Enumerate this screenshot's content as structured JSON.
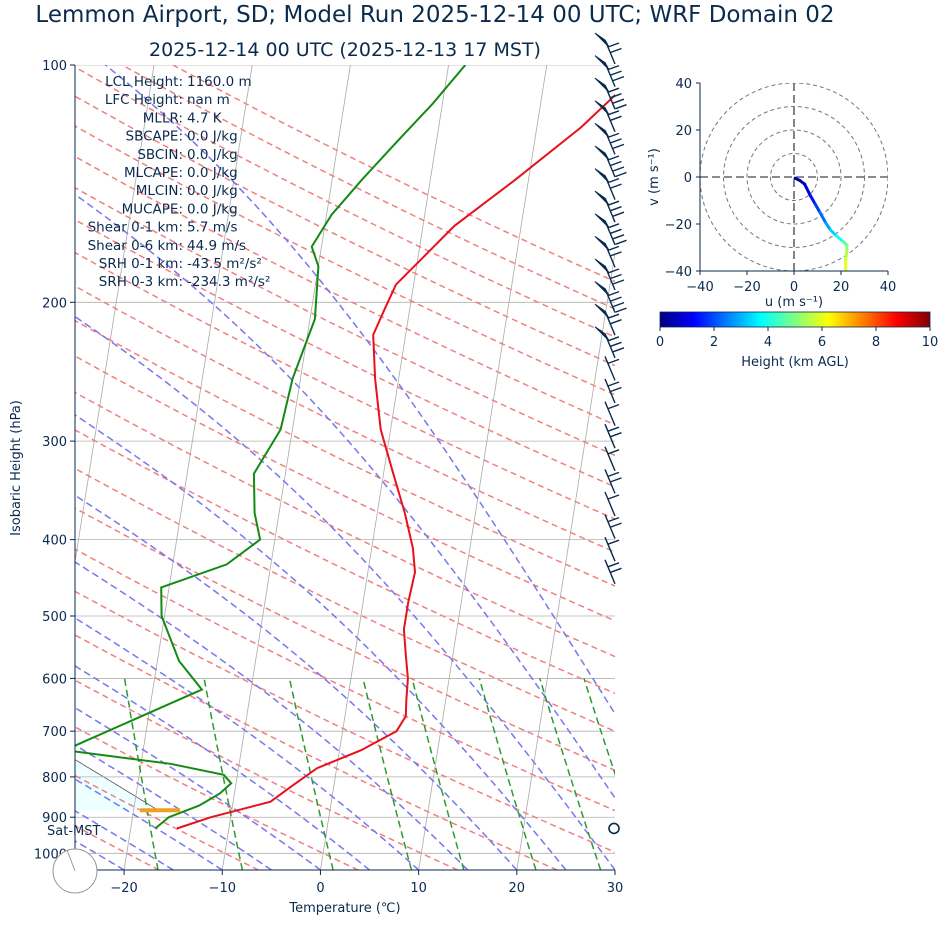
{
  "title": "Lemmon Airport, SD; Model Run 2025-12-14 00 UTC; WRF Domain 02",
  "subtitle": "2025-12-14 00 UTC  (2025-12-13 17 MST)",
  "colors": {
    "text": "#0a2a4e",
    "temperature": "#e8111b",
    "dewpoint": "#138a13",
    "dry_adiabat": "#f08080",
    "moist_adiabat": "#7777ee",
    "mixing_ratio": "#2e9a2e",
    "isotherm": "#aaaaaa",
    "cape_fill": "#eeffff",
    "lcl_marker": "#f0a020",
    "barb": "#0a2a4e"
  },
  "stats": [
    "LCL Height: 1160.0 m",
    "LFC Height: nan m",
    "MLLR: 4.7 K",
    "SBCAPE: 0.0 J/kg",
    "SBCIN: 0.0 J/kg",
    "MLCAPE: 0.0 J/kg",
    "MLCIN: 0.0 J/kg",
    "MUCAPE: 0.0 J/kg",
    "Shear 0-1 km: 5.7 m/s",
    "Shear 0-6 km: 44.9 m/s",
    "SRH 0-1 km: -43.5 m²/s²",
    "SRH 0-3 km: -234.3 m²/s²"
  ],
  "station_label": "Sat-MST",
  "chart_data": [
    {
      "type": "line",
      "name": "skew-t",
      "xlabel": "Temperature (℃)",
      "ylabel": "Isobaric Height (hPa)",
      "xlim": [
        -25,
        30
      ],
      "ylim": [
        1050,
        100
      ],
      "y_scale": "log",
      "x_ticks": [
        "−20",
        "−10",
        "0",
        "10",
        "20",
        "30"
      ],
      "x_tick_values": [
        -20,
        -10,
        0,
        10,
        20,
        30
      ],
      "y_ticks": [
        "100",
        "200",
        "300",
        "400",
        "500",
        "600",
        "700",
        "800",
        "900",
        "1000"
      ],
      "y_tick_values": [
        100,
        200,
        300,
        400,
        500,
        600,
        700,
        800,
        900,
        1000
      ],
      "grid": true,
      "temperature_profile": [
        [
          930,
          -15.3
        ],
        [
          900,
          -12.0
        ],
        [
          860,
          -6.2
        ],
        [
          820,
          -4.2
        ],
        [
          780,
          -2.0
        ],
        [
          740,
          2.2
        ],
        [
          700,
          5.5
        ],
        [
          670,
          6.2
        ],
        [
          640,
          6.0
        ],
        [
          600,
          5.8
        ],
        [
          560,
          5.2
        ],
        [
          520,
          4.6
        ],
        [
          480,
          4.6
        ],
        [
          440,
          4.8
        ],
        [
          410,
          4.2
        ],
        [
          370,
          2.8
        ],
        [
          330,
          1.0
        ],
        [
          290,
          -1.0
        ],
        [
          250,
          -2.4
        ],
        [
          220,
          -3.3
        ],
        [
          205,
          -2.6
        ],
        [
          190,
          -1.8
        ],
        [
          160,
          3.2
        ],
        [
          140,
          8.6
        ],
        [
          120,
          14.5
        ],
        [
          100,
          20.2
        ]
      ],
      "dewpoint_profile": [
        [
          930,
          -17.5
        ],
        [
          900,
          -16.3
        ],
        [
          870,
          -13.4
        ],
        [
          840,
          -11.5
        ],
        [
          815,
          -10.5
        ],
        [
          795,
          -11.4
        ],
        [
          770,
          -17.0
        ],
        [
          740,
          -28.0
        ],
        [
          650,
          -18.5
        ],
        [
          620,
          -15.0
        ],
        [
          570,
          -17.8
        ],
        [
          500,
          -20.3
        ],
        [
          460,
          -20.8
        ],
        [
          430,
          -14.5
        ],
        [
          400,
          -11.5
        ],
        [
          370,
          -12.5
        ],
        [
          330,
          -13.2
        ],
        [
          290,
          -11.2
        ],
        [
          250,
          -10.8
        ],
        [
          210,
          -9.5
        ],
        [
          180,
          -10.0
        ],
        [
          170,
          -11.0
        ],
        [
          155,
          -9.5
        ],
        [
          140,
          -7.0
        ],
        [
          125,
          -4.0
        ],
        [
          112,
          -1.0
        ],
        [
          100,
          1.7
        ]
      ],
      "lcl": {
        "pressure": 882,
        "temperature": -17.5
      }
    },
    {
      "type": "line",
      "name": "hodograph",
      "xlabel": "u (m s⁻¹)",
      "ylabel": "v (m s⁻¹)",
      "xlim": [
        -40,
        40
      ],
      "ylim": [
        -40,
        40
      ],
      "x_ticks": [
        "−40",
        "−20",
        "0",
        "20",
        "40"
      ],
      "x_tick_values": [
        -40,
        -20,
        0,
        20,
        40
      ],
      "y_ticks": [
        "−40",
        "−20",
        "0",
        "20",
        "40"
      ],
      "y_tick_values": [
        -40,
        -20,
        0,
        20,
        40
      ],
      "rings": [
        10,
        20,
        30,
        40
      ],
      "points": [
        {
          "u": 0.5,
          "v": -0.5,
          "h": 0.1
        },
        {
          "u": 2.5,
          "v": -1.5,
          "h": 0.3
        },
        {
          "u": 4.5,
          "v": -3.0,
          "h": 0.6
        },
        {
          "u": 5.5,
          "v": -5.0,
          "h": 0.9
        },
        {
          "u": 7.0,
          "v": -8.0,
          "h": 1.2
        },
        {
          "u": 9.0,
          "v": -11.5,
          "h": 1.6
        },
        {
          "u": 11.0,
          "v": -15.0,
          "h": 2.0
        },
        {
          "u": 13.5,
          "v": -19.5,
          "h": 2.6
        },
        {
          "u": 15.5,
          "v": -22.5,
          "h": 3.0
        },
        {
          "u": 18.0,
          "v": -25.0,
          "h": 3.6
        },
        {
          "u": 21.0,
          "v": -27.5,
          "h": 4.2
        },
        {
          "u": 22.5,
          "v": -29.0,
          "h": 4.8
        },
        {
          "u": 22.5,
          "v": -31.5,
          "h": 5.3
        },
        {
          "u": 22.0,
          "v": -35.0,
          "h": 5.8
        },
        {
          "u": 22.0,
          "v": -40.0,
          "h": 6.2
        }
      ]
    },
    {
      "type": "heatmap",
      "name": "colorbar",
      "label": "Height (km AGL)",
      "range": [
        0,
        10
      ],
      "ticks": [
        "0",
        "2",
        "4",
        "6",
        "8",
        "10"
      ],
      "tick_values": [
        0,
        2,
        4,
        6,
        8,
        10
      ],
      "colormap": [
        "#00007f",
        "#0000ff",
        "#007fff",
        "#00ffff",
        "#7fff7f",
        "#ffff00",
        "#ff7f00",
        "#ff0000",
        "#7f0000"
      ]
    }
  ]
}
